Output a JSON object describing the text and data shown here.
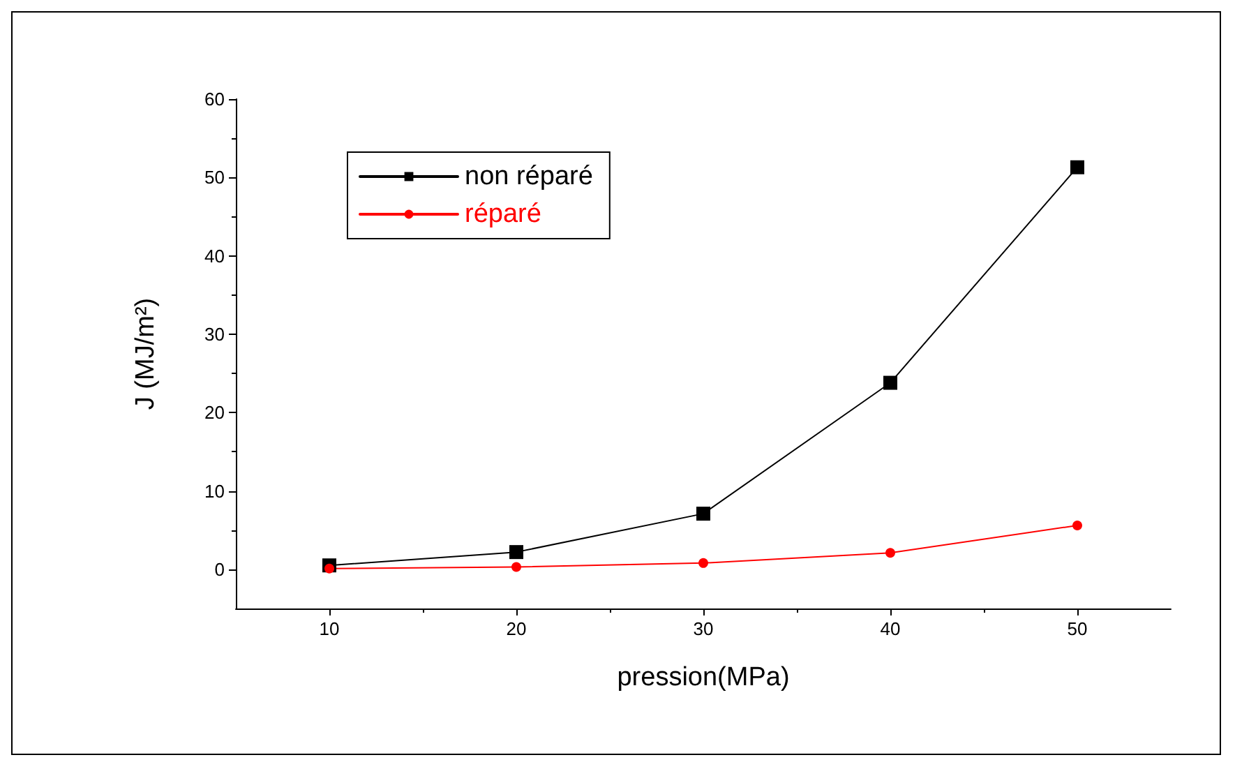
{
  "chart_data": {
    "type": "line",
    "xlabel": "pression(MPa)",
    "ylabel": "J (MJ/m²)",
    "x": [
      10,
      20,
      30,
      40,
      50
    ],
    "series": [
      {
        "name": "non réparé",
        "color": "#000000",
        "marker": "square",
        "values": [
          0.5,
          2.2,
          7.1,
          23.8,
          51.3
        ]
      },
      {
        "name": "réparé",
        "color": "#ff0000",
        "marker": "circle",
        "values": [
          0.1,
          0.3,
          0.8,
          2.1,
          5.6
        ]
      }
    ],
    "xlim": [
      5,
      55
    ],
    "xticks": [
      10,
      20,
      30,
      40,
      50
    ],
    "ylim": [
      -5,
      60
    ],
    "yticks": [
      0,
      10,
      20,
      30,
      40,
      50,
      60
    ],
    "grid": false,
    "legend": "top left",
    "line_style": "solid"
  }
}
